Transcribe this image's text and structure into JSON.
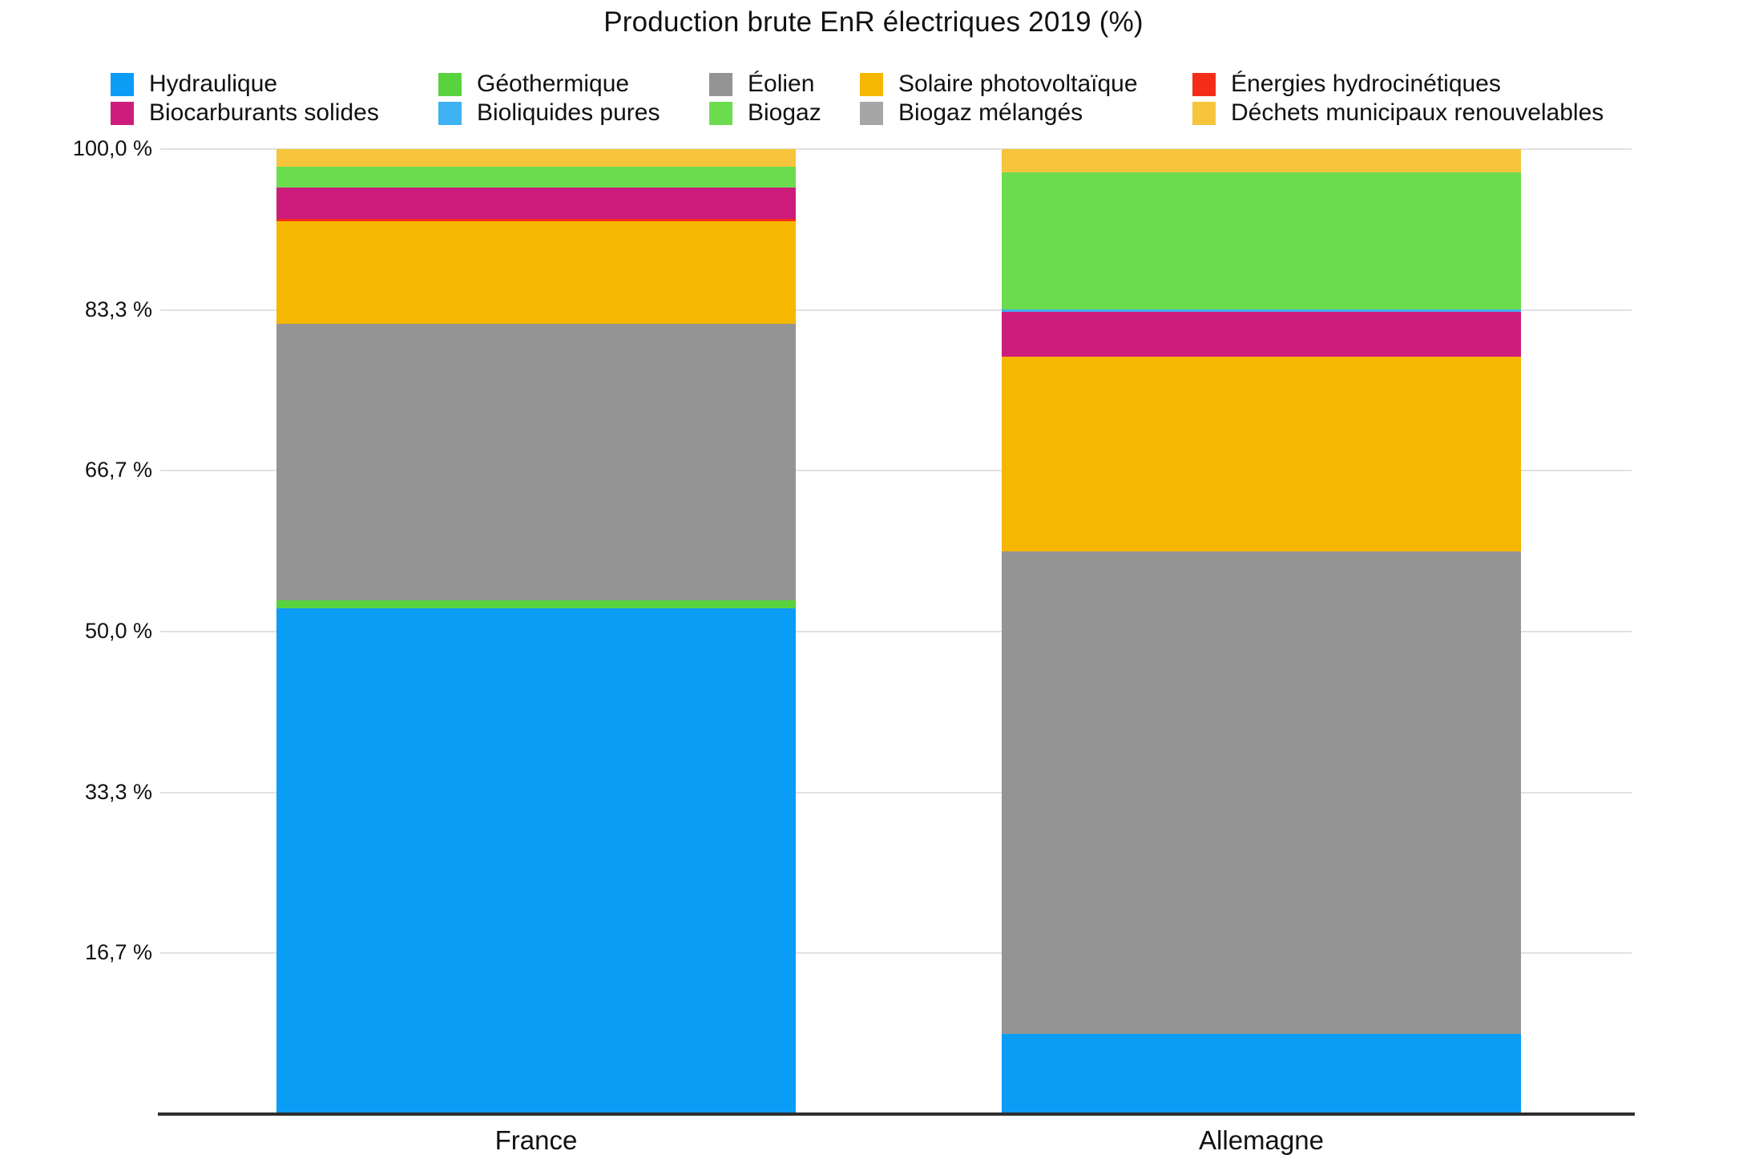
{
  "chart_data": {
    "type": "bar",
    "variant": "stacked-percentage",
    "title": "Production brute EnR électriques 2019 (%)",
    "categories": [
      "France",
      "Allemagne"
    ],
    "unit": "%",
    "ylim": [
      0,
      100
    ],
    "y_tick_labels": [
      "100,0 %",
      "83,3 %",
      "66,7 %",
      "50,0 %",
      "33,3 %",
      "16,7 %"
    ],
    "y_tick_values": [
      100,
      83.3,
      66.7,
      50.0,
      33.3,
      16.7
    ],
    "grid": true,
    "legend_position": "top",
    "series": [
      {
        "name": "Hydraulique",
        "color": "#0b9cf6",
        "values": [
          52.4,
          8.2
        ]
      },
      {
        "name": "Géothermique",
        "color": "#59d23f",
        "values": [
          0.8,
          0
        ]
      },
      {
        "name": "Éolien",
        "color": "#949494",
        "values": [
          28.7,
          50.1
        ]
      },
      {
        "name": "Solaire photovoltaïque",
        "color": "#f5b700",
        "values": [
          10.6,
          20.2
        ]
      },
      {
        "name": "Énergies hydrocinétiques",
        "color": "#f42d1b",
        "values": [
          0.3,
          0
        ]
      },
      {
        "name": "Biocarburants solides",
        "color": "#cd1d7c",
        "values": [
          3.2,
          4.6
        ]
      },
      {
        "name": "Bioliquides pures",
        "color": "#3fb2f3",
        "values": [
          0,
          0.3
        ]
      },
      {
        "name": "Biogaz",
        "color": "#6cdc4f",
        "values": [
          2.2,
          14.2
        ]
      },
      {
        "name": "Biogaz mélangés",
        "color": "#a6a6a6",
        "values": [
          0,
          0
        ]
      },
      {
        "name": "Déchets municipaux renouvelables",
        "color": "#f6c53c",
        "values": [
          1.8,
          2.4
        ]
      }
    ],
    "legend_rows": [
      [
        0,
        1,
        2,
        3,
        4
      ],
      [
        5,
        6,
        7,
        8,
        9
      ]
    ]
  }
}
